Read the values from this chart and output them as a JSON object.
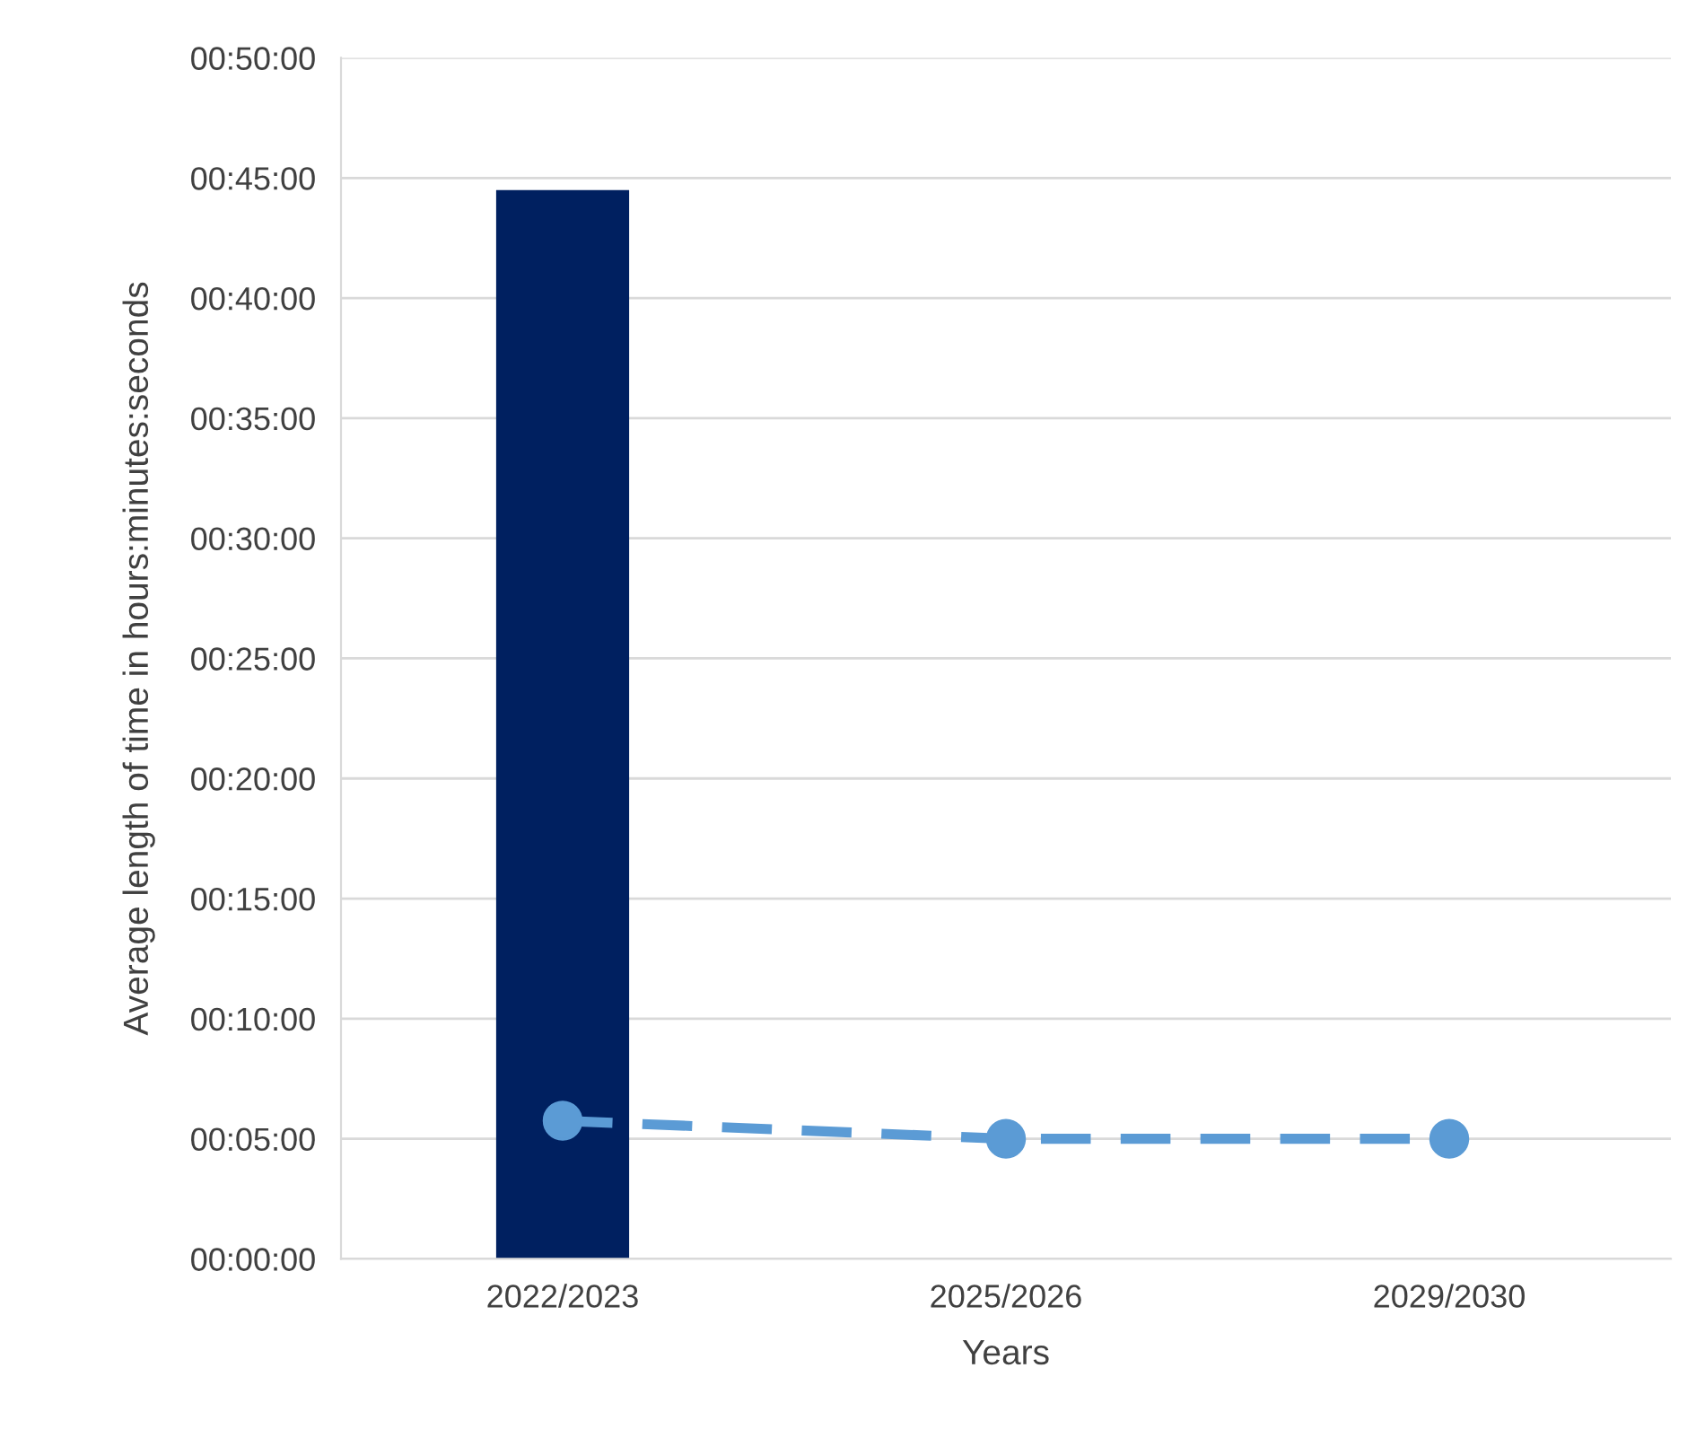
{
  "chart_data": {
    "type": "bar",
    "ylabel": "Average length of time in hours:minutes:seconds",
    "xlabel": "Years",
    "categories": [
      "2022/2023",
      "2025/2026",
      "2029/2030"
    ],
    "series": [
      {
        "color": "#002060",
        "values": [
          44.5,
          null,
          null
        ]
      },
      {
        "type": "line",
        "color": "#5b9bd5",
        "values": [
          5.75,
          5,
          5
        ],
        "marker": "circle",
        "line_style": "dashed"
      }
    ],
    "ylim": [
      0,
      50
    ],
    "yticks": [
      {
        "value": 0,
        "label": "00:00:00"
      },
      {
        "value": 5,
        "label": "00:05:00"
      },
      {
        "value": 10,
        "label": "00:10:00"
      },
      {
        "value": 15,
        "label": "00:15:00"
      },
      {
        "value": 20,
        "label": "00:20:00"
      },
      {
        "value": 25,
        "label": "00:25:00"
      },
      {
        "value": 30,
        "label": "00:30:00"
      },
      {
        "value": 35,
        "label": "00:35:00"
      },
      {
        "value": 40,
        "label": "00:40:00"
      },
      {
        "value": 45,
        "label": "00:45:00"
      },
      {
        "value": 50,
        "label": "00:50:00"
      }
    ],
    "grid": "y",
    "legend": false
  }
}
